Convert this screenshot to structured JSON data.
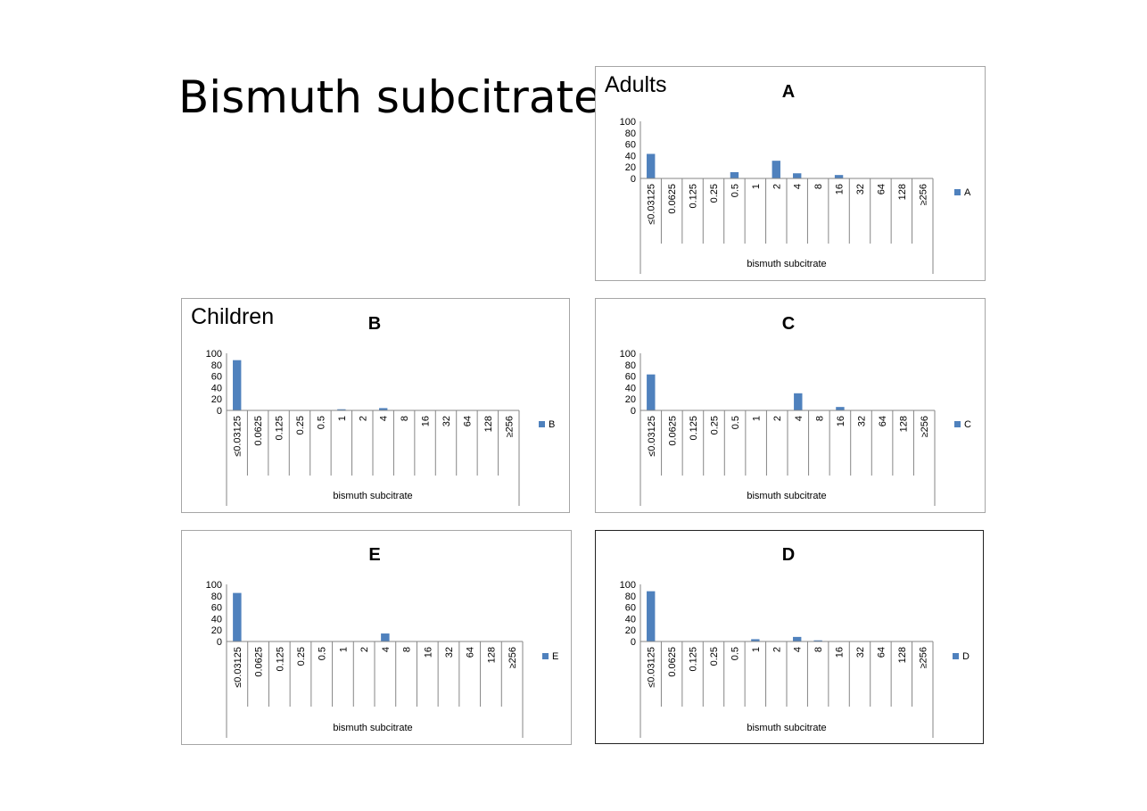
{
  "page_title": "Bismuth subcitrate",
  "colors": {
    "bar": "#4f81bd",
    "axis": "#868686",
    "text": "#000000"
  },
  "chart_data": [
    {
      "id": "A",
      "type": "bar",
      "title": "A",
      "group_label": "Adults",
      "xlabel": "bismuth subcitrate",
      "ylabel": "",
      "categories": [
        "≤0.03125",
        "0.0625",
        "0.125",
        "0.25",
        "0.5",
        "1",
        "2",
        "4",
        "8",
        "16",
        "32",
        "64",
        "128",
        "≥256"
      ],
      "series": [
        {
          "name": "A",
          "values": [
            43,
            0,
            0,
            0,
            11,
            0,
            31,
            9,
            0,
            6,
            0,
            0,
            0,
            0
          ]
        }
      ],
      "yticks": [
        "0",
        "20",
        "40",
        "60",
        "80",
        "100"
      ],
      "ylim": [
        0,
        100
      ],
      "grid": false,
      "legend": "right"
    },
    {
      "id": "B",
      "type": "bar",
      "title": "B",
      "group_label": "Children",
      "xlabel": "bismuth subcitrate",
      "ylabel": "",
      "categories": [
        "≤0.03125",
        "0.0625",
        "0.125",
        "0.25",
        "0.5",
        "1",
        "2",
        "4",
        "8",
        "16",
        "32",
        "64",
        "128",
        "≥256"
      ],
      "series": [
        {
          "name": "B",
          "values": [
            88,
            0,
            0,
            0,
            0,
            2,
            0,
            4,
            0,
            0,
            0,
            0,
            0,
            0
          ]
        }
      ],
      "yticks": [
        "0",
        "20",
        "40",
        "60",
        "80",
        "100"
      ],
      "ylim": [
        0,
        100
      ],
      "grid": false,
      "legend": "right"
    },
    {
      "id": "C",
      "type": "bar",
      "title": "C",
      "group_label": "",
      "xlabel": "bismuth subcitrate",
      "ylabel": "",
      "categories": [
        "≤0.03125",
        "0.0625",
        "0.125",
        "0.25",
        "0.5",
        "1",
        "2",
        "4",
        "8",
        "16",
        "32",
        "64",
        "128",
        "≥256"
      ],
      "series": [
        {
          "name": "C",
          "values": [
            63,
            0,
            0,
            0,
            0,
            0,
            0,
            30,
            0,
            6,
            0,
            0,
            0,
            0
          ]
        }
      ],
      "yticks": [
        "0",
        "20",
        "40",
        "60",
        "80",
        "100"
      ],
      "ylim": [
        0,
        100
      ],
      "grid": false,
      "legend": "right"
    },
    {
      "id": "E",
      "type": "bar",
      "title": "E",
      "group_label": "",
      "xlabel": "bismuth subcitrate",
      "ylabel": "",
      "categories": [
        "≤0.03125",
        "0.0625",
        "0.125",
        "0.25",
        "0.5",
        "1",
        "2",
        "4",
        "8",
        "16",
        "32",
        "64",
        "128",
        "≥256"
      ],
      "series": [
        {
          "name": "E",
          "values": [
            85,
            0,
            0,
            0,
            0,
            0,
            0,
            14,
            0,
            0,
            0,
            0,
            0,
            0
          ]
        }
      ],
      "yticks": [
        "0",
        "20",
        "40",
        "60",
        "80",
        "100"
      ],
      "ylim": [
        0,
        100
      ],
      "grid": false,
      "legend": "right"
    },
    {
      "id": "D",
      "type": "bar",
      "title": "D",
      "group_label": "",
      "xlabel": "bismuth subcitrate",
      "ylabel": "",
      "categories": [
        "≤0.03125",
        "0.0625",
        "0.125",
        "0.25",
        "0.5",
        "1",
        "2",
        "4",
        "8",
        "16",
        "32",
        "64",
        "128",
        "≥256"
      ],
      "series": [
        {
          "name": "D",
          "values": [
            88,
            0,
            0,
            0,
            0,
            4,
            0,
            8,
            2,
            0,
            0,
            0,
            0,
            0
          ]
        }
      ],
      "yticks": [
        "0",
        "20",
        "40",
        "60",
        "80",
        "100"
      ],
      "ylim": [
        0,
        100
      ],
      "grid": false,
      "legend": "right"
    }
  ]
}
